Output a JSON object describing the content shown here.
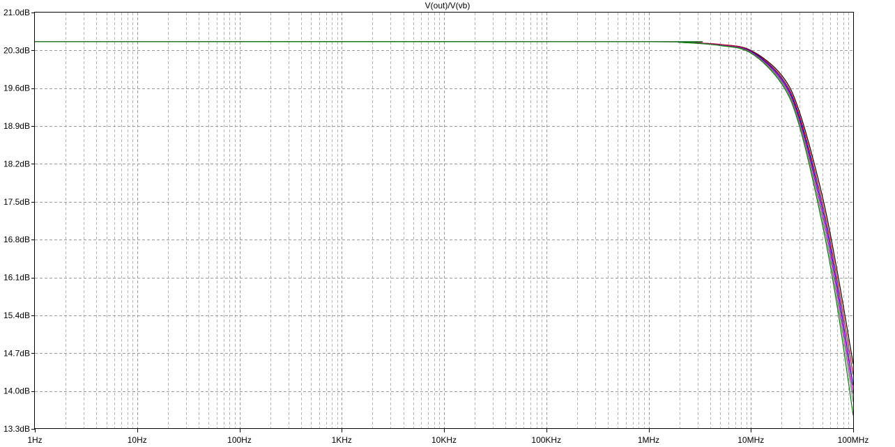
{
  "chart_data": {
    "type": "line",
    "title": "V(out)/V(vb)",
    "xlabel": "",
    "ylabel": "",
    "x_scale": "log",
    "x_range": [
      1,
      100000000
    ],
    "y_range": [
      13.3,
      21.0
    ],
    "grid": true,
    "x_ticks": [
      {
        "value": 1,
        "label": "1Hz"
      },
      {
        "value": 10,
        "label": "10Hz"
      },
      {
        "value": 100,
        "label": "100Hz"
      },
      {
        "value": 1000,
        "label": "1KHz"
      },
      {
        "value": 10000,
        "label": "10KHz"
      },
      {
        "value": 100000,
        "label": "100KHz"
      },
      {
        "value": 1000000,
        "label": "1MHz"
      },
      {
        "value": 10000000,
        "label": "10MHz"
      },
      {
        "value": 100000000,
        "label": "100MHz"
      }
    ],
    "y_ticks": [
      {
        "value": 21.0,
        "label": "21.0dB"
      },
      {
        "value": 20.3,
        "label": "20.3dB"
      },
      {
        "value": 19.6,
        "label": "19.6dB"
      },
      {
        "value": 18.9,
        "label": "18.9dB"
      },
      {
        "value": 18.2,
        "label": "18.2dB"
      },
      {
        "value": 17.5,
        "label": "17.5dB"
      },
      {
        "value": 16.8,
        "label": "16.8dB"
      },
      {
        "value": 16.1,
        "label": "16.1dB"
      },
      {
        "value": 15.4,
        "label": "15.4dB"
      },
      {
        "value": 14.7,
        "label": "14.7dB"
      },
      {
        "value": 14.0,
        "label": "14.0dB"
      },
      {
        "value": 13.3,
        "label": "13.3dB"
      }
    ],
    "series": [
      {
        "color": "#000000",
        "x": [
          1,
          1000000,
          2000000,
          5000000,
          10000000,
          20000000,
          30000000,
          50000000,
          70000000,
          100000000
        ],
        "y": [
          20.46,
          20.46,
          20.45,
          20.41,
          20.3,
          19.84,
          19.15,
          17.6,
          16.2,
          14.5
        ]
      },
      {
        "color": "#d00000",
        "x": [
          1,
          1000000,
          2000000,
          5000000,
          10000000,
          20000000,
          30000000,
          50000000,
          70000000,
          100000000
        ],
        "y": [
          20.46,
          20.46,
          20.45,
          20.41,
          20.29,
          19.8,
          19.08,
          17.48,
          16.05,
          14.3
        ]
      },
      {
        "color": "#0000cc",
        "x": [
          1,
          1000000,
          2000000,
          5000000,
          10000000,
          20000000,
          30000000,
          50000000,
          70000000,
          100000000
        ],
        "y": [
          20.46,
          20.46,
          20.45,
          20.4,
          20.28,
          19.77,
          19.03,
          17.38,
          15.92,
          14.1
        ]
      },
      {
        "color": "#cc00cc",
        "x": [
          1,
          1000000,
          2000000,
          5000000,
          10000000,
          20000000,
          30000000,
          50000000,
          70000000,
          100000000
        ],
        "y": [
          20.46,
          20.46,
          20.45,
          20.4,
          20.27,
          19.74,
          18.98,
          17.28,
          15.8,
          13.95
        ]
      },
      {
        "color": "#808080",
        "x": [
          1,
          1000000,
          2000000,
          5000000,
          10000000,
          20000000,
          30000000,
          50000000,
          70000000,
          100000000
        ],
        "y": [
          20.46,
          20.46,
          20.45,
          20.39,
          20.26,
          19.71,
          18.93,
          17.18,
          15.68,
          13.8
        ]
      },
      {
        "color": "#008000",
        "x": [
          1,
          1000000,
          2000000,
          5000000,
          10000000,
          20000000,
          30000000,
          50000000,
          70000000,
          100000000
        ],
        "y": [
          20.46,
          20.46,
          20.45,
          20.39,
          20.25,
          19.68,
          18.88,
          17.08,
          15.55,
          13.55
        ]
      }
    ]
  }
}
